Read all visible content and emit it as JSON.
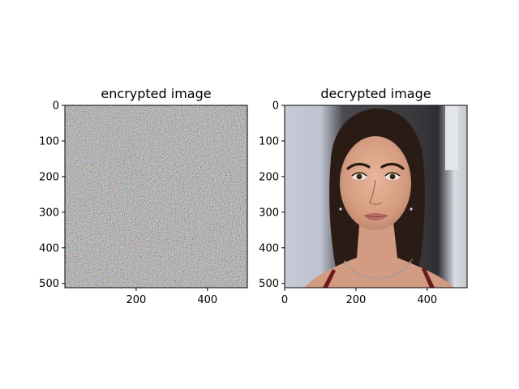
{
  "chart_data": [
    {
      "type": "image",
      "title": "encrypted image",
      "content": "random color noise",
      "image_size": [
        512,
        512
      ],
      "xlim": [
        0,
        512
      ],
      "ylim": [
        512,
        0
      ],
      "xticks": [
        200,
        400
      ],
      "yticks": [
        0,
        100,
        200,
        300,
        400,
        500
      ],
      "grid": false
    },
    {
      "type": "image",
      "title": "decrypted image",
      "content": "portrait photo",
      "image_size": [
        512,
        512
      ],
      "xlim": [
        0,
        512
      ],
      "ylim": [
        512,
        0
      ],
      "xticks": [
        0,
        200,
        400
      ],
      "yticks": [
        0,
        100,
        200,
        300,
        400,
        500
      ],
      "grid": false
    }
  ],
  "colors": {
    "noise_mean": "#8f8a8d",
    "background_left": "#c8cad6",
    "background_right": "#3a3a3e",
    "hair": "#2b1b15",
    "skin": "#d9a58b",
    "lips": "#b86a63"
  }
}
